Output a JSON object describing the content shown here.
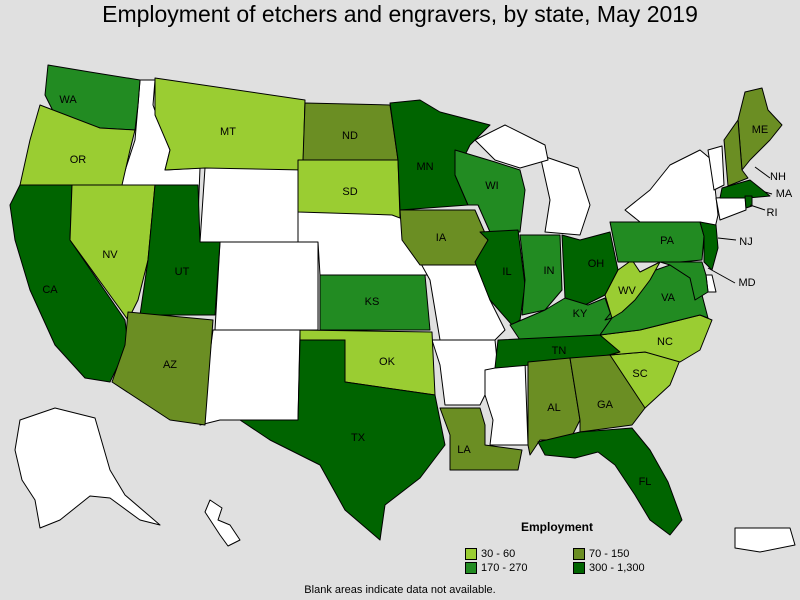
{
  "title": "Employment of etchers and engravers, by state, May 2019",
  "legend": {
    "title": "Employment",
    "items": [
      {
        "label": "30 - 60",
        "color": "#9acd32"
      },
      {
        "label": "70 - 150",
        "color": "#6b8e23"
      },
      {
        "label": "170 - 270",
        "color": "#228b22"
      },
      {
        "label": "300 - 1,300",
        "color": "#006400"
      }
    ]
  },
  "footnote": "Blank areas indicate data not available.",
  "colors": {
    "nodata": "#ffffff",
    "c1": "#9acd32",
    "c2": "#6b8e23",
    "c3": "#228b22",
    "c4": "#006400",
    "background": "#e0e0e0"
  },
  "states": {
    "WA": "WA",
    "OR": "OR",
    "CA": "CA",
    "NV": "NV",
    "MT": "MT",
    "UT": "UT",
    "AZ": "AZ",
    "ND": "ND",
    "SD": "SD",
    "KS": "KS",
    "OK": "OK",
    "TX": "TX",
    "MN": "MN",
    "IA": "IA",
    "LA": "LA",
    "WI": "WI",
    "IL": "IL",
    "IN": "IN",
    "OH": "OH",
    "KY": "KY",
    "TN": "TN",
    "AL": "AL",
    "GA": "GA",
    "FL": "FL",
    "SC": "SC",
    "NC": "NC",
    "VA": "VA",
    "WV": "WV",
    "PA": "PA",
    "NJ": "NJ",
    "MD": "MD",
    "ME": "ME",
    "NH": "NH",
    "MA": "MA",
    "RI": "RI"
  }
}
